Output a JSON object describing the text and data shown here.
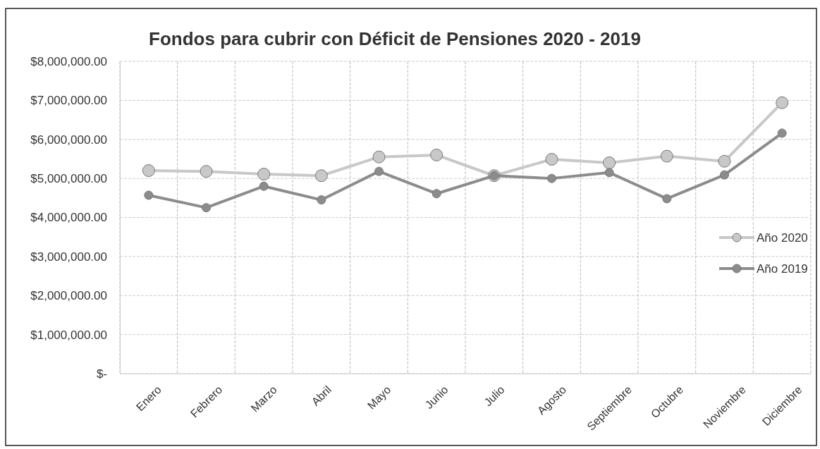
{
  "chart_data": {
    "type": "line",
    "title": "Fondos para cubrir con Déficit de Pensiones 2020 - 2019",
    "categories": [
      "Enero",
      "Febrero",
      "Marzo",
      "Abril",
      "Mayo",
      "Junio",
      "Julio",
      "Agosto",
      "Septiembre",
      "Octubre",
      "Noviembre",
      "Diciembre"
    ],
    "series": [
      {
        "name": "Año 2020",
        "color": "#c8c8c8",
        "values": [
          5200000.0,
          5180000.0,
          5110000.0,
          5070000.0,
          5550000.0,
          5600000.0,
          5070000.0,
          5490000.0,
          5400000.0,
          5570000.0,
          5440000.0,
          6940000.0
        ]
      },
      {
        "name": "Año 2019",
        "color": "#8c8c8c",
        "values": [
          4570000.0,
          4250000.0,
          4800000.0,
          4450000.0,
          5180000.0,
          4610000.0,
          5070000.0,
          5000000.0,
          5150000.0,
          4480000.0,
          5090000.0,
          6160000.0
        ]
      }
    ],
    "ylim": [
      0,
      8000000
    ],
    "yticks": [
      {
        "value": 0,
        "label": "$-"
      },
      {
        "value": 1000000,
        "label": "$1,000,000.00"
      },
      {
        "value": 2000000,
        "label": "$2,000,000.00"
      },
      {
        "value": 3000000,
        "label": "$3,000,000.00"
      },
      {
        "value": 4000000,
        "label": "$4,000,000.00"
      },
      {
        "value": 5000000,
        "label": "$5,000,000.00"
      },
      {
        "value": 6000000,
        "label": "$6,000,000.00"
      },
      {
        "value": 7000000,
        "label": "$7,000,000.00"
      },
      {
        "value": 8000000,
        "label": "$8,000,000.00"
      }
    ],
    "grid": true,
    "legend": "right",
    "marker": "circle",
    "line_style": "solid"
  }
}
